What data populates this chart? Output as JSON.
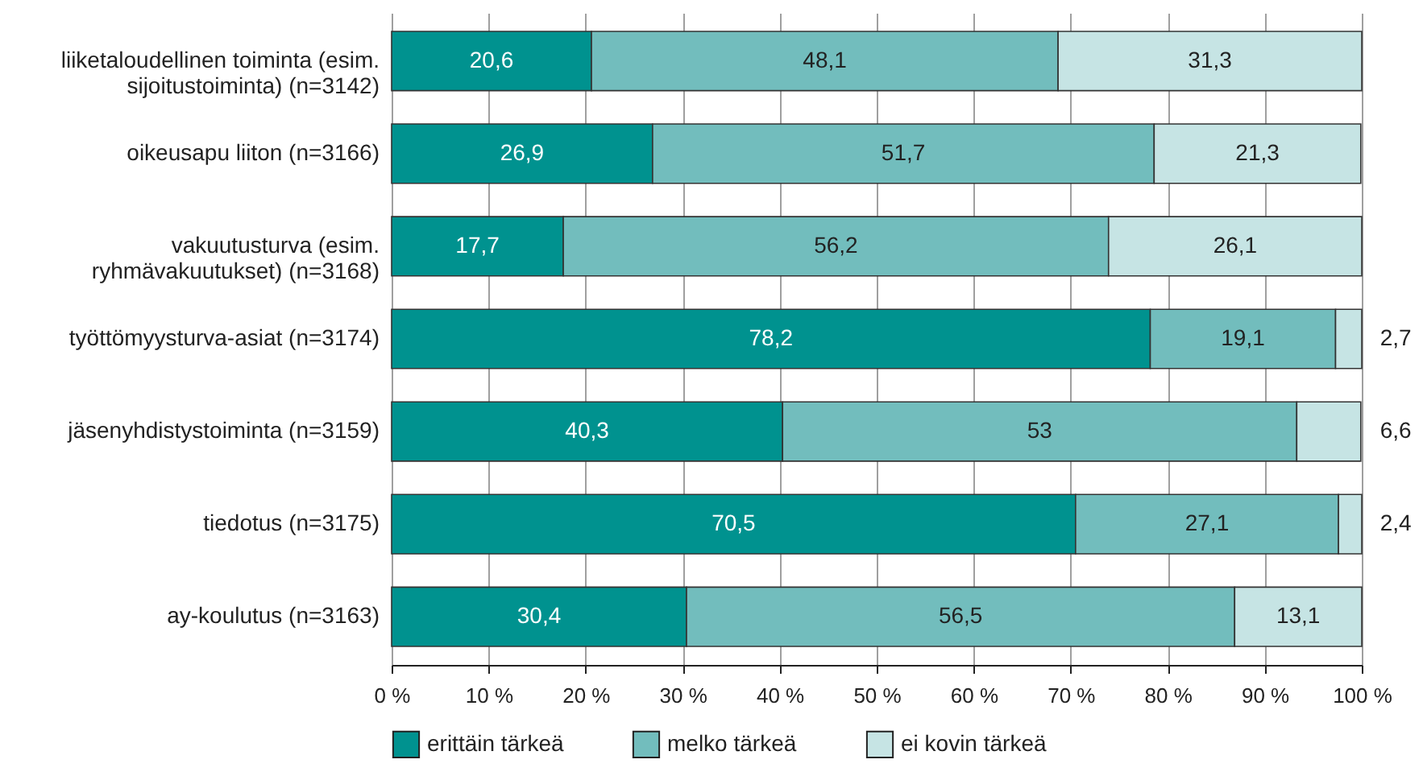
{
  "chart_data": {
    "type": "bar",
    "orientation": "horizontal",
    "stacked": true,
    "grid": "x",
    "legend": "bottom",
    "categories": [
      "liiketaloudellinen toiminta (esim.\nsijoitustoiminta) (n=3142)",
      "oikeusapu liiton (n=3166)",
      "vakuutusturva (esim.\nryhmävakuutukset) (n=3168)",
      "työttömyysturva-asiat (n=3174)",
      "jäsenyhdistystoiminta (n=3159)",
      "tiedotus (n=3175)",
      "ay-koulutus (n=3163)"
    ],
    "series": [
      {
        "name": "erittäin tärkeä",
        "color": "#00928f",
        "values": [
          20.6,
          26.9,
          17.7,
          78.2,
          40.3,
          70.5,
          30.4
        ],
        "value_labels": [
          "20,6",
          "26,9",
          "17,7",
          "78,2",
          "40,3",
          "70,5",
          "30,4"
        ]
      },
      {
        "name": "melko tärkeä",
        "color": "#72bdbd",
        "values": [
          48.1,
          51.7,
          56.2,
          19.1,
          53,
          27.1,
          56.5
        ],
        "value_labels": [
          "48,1",
          "51,7",
          "56,2",
          "19,1",
          "53",
          "27,1",
          "56,5"
        ]
      },
      {
        "name": "ei kovin tärkeä",
        "color": "#c6e4e4",
        "values": [
          31.3,
          21.3,
          26.1,
          2.7,
          6.6,
          2.4,
          13.1
        ],
        "value_labels": [
          "31,3",
          "21,3",
          "26,1",
          "2,7",
          "6,6",
          "2,4",
          "13,1"
        ]
      }
    ],
    "xlim": [
      0,
      100
    ],
    "xticks": [
      {
        "value": 0,
        "label": "0 %"
      },
      {
        "value": 10,
        "label": "10 %"
      },
      {
        "value": 20,
        "label": "20 %"
      },
      {
        "value": 30,
        "label": "30 %"
      },
      {
        "value": 40,
        "label": "40 %"
      },
      {
        "value": 50,
        "label": "50 %"
      },
      {
        "value": 60,
        "label": "60 %"
      },
      {
        "value": 70,
        "label": "70 %"
      },
      {
        "value": 80,
        "label": "80 %"
      },
      {
        "value": 90,
        "label": "90 %"
      },
      {
        "value": 100,
        "label": "100 %"
      }
    ]
  }
}
